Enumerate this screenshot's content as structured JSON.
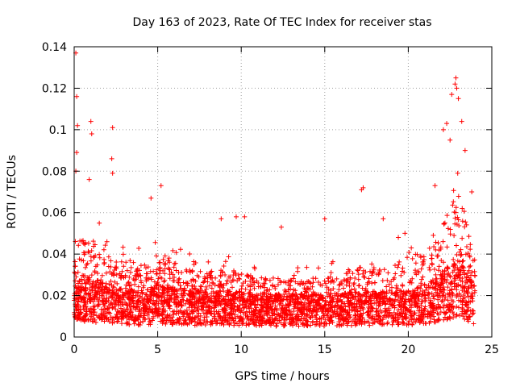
{
  "chart_data": {
    "type": "scatter",
    "title": "Day 163 of 2023, Rate Of TEC Index for receiver stas",
    "xlabel": "GPS time / hours",
    "ylabel": "ROTI / TECUs",
    "xlim": [
      0,
      25
    ],
    "ylim": [
      0,
      0.14
    ],
    "xticks": [
      0,
      5,
      10,
      15,
      20,
      25
    ],
    "xtick_labels": [
      "0",
      "5",
      "10",
      "15",
      "20",
      "25"
    ],
    "yticks": [
      0,
      0.02,
      0.04,
      0.06,
      0.08,
      0.1,
      0.12,
      0.14
    ],
    "ytick_labels": [
      "0",
      "0.02",
      "0.04",
      "0.06",
      "0.08",
      "0.1",
      "0.12",
      "0.14"
    ],
    "grid": true,
    "marker": "+",
    "color": "#ff0000",
    "series": [
      {
        "name": "ROTI",
        "profile": {
          "hours": [
            0,
            0.3,
            1,
            2,
            4,
            5,
            7,
            9,
            12,
            15,
            18,
            20,
            21.5,
            22.5,
            23,
            23.5,
            24
          ],
          "median": [
            0.014,
            0.018,
            0.018,
            0.016,
            0.014,
            0.016,
            0.014,
            0.014,
            0.013,
            0.013,
            0.014,
            0.014,
            0.017,
            0.022,
            0.024,
            0.02,
            0.015
          ],
          "upper": [
            0.05,
            0.06,
            0.06,
            0.05,
            0.045,
            0.05,
            0.04,
            0.04,
            0.035,
            0.035,
            0.045,
            0.05,
            0.055,
            0.08,
            0.09,
            0.07,
            0.04
          ]
        },
        "peaks": [
          {
            "x": 0.1,
            "y": 0.137
          },
          {
            "x": 0.15,
            "y": 0.116
          },
          {
            "x": 0.2,
            "y": 0.102
          },
          {
            "x": 0.15,
            "y": 0.089
          },
          {
            "x": 0.1,
            "y": 0.08
          },
          {
            "x": 1.0,
            "y": 0.104
          },
          {
            "x": 1.05,
            "y": 0.098
          },
          {
            "x": 0.9,
            "y": 0.076
          },
          {
            "x": 2.3,
            "y": 0.101
          },
          {
            "x": 2.25,
            "y": 0.086
          },
          {
            "x": 2.3,
            "y": 0.079
          },
          {
            "x": 5.2,
            "y": 0.073
          },
          {
            "x": 4.6,
            "y": 0.067
          },
          {
            "x": 8.8,
            "y": 0.057
          },
          {
            "x": 9.7,
            "y": 0.058
          },
          {
            "x": 10.2,
            "y": 0.058
          },
          {
            "x": 12.4,
            "y": 0.053
          },
          {
            "x": 15.0,
            "y": 0.057
          },
          {
            "x": 17.3,
            "y": 0.072
          },
          {
            "x": 17.2,
            "y": 0.071
          },
          {
            "x": 18.5,
            "y": 0.057
          },
          {
            "x": 19.8,
            "y": 0.05
          },
          {
            "x": 22.6,
            "y": 0.117
          },
          {
            "x": 22.8,
            "y": 0.122
          },
          {
            "x": 22.85,
            "y": 0.125
          },
          {
            "x": 22.9,
            "y": 0.12
          },
          {
            "x": 23.0,
            "y": 0.115
          },
          {
            "x": 23.2,
            "y": 0.104
          },
          {
            "x": 22.3,
            "y": 0.103
          },
          {
            "x": 22.1,
            "y": 0.1
          },
          {
            "x": 22.5,
            "y": 0.095
          },
          {
            "x": 23.4,
            "y": 0.09
          },
          {
            "x": 21.6,
            "y": 0.073
          },
          {
            "x": 23.8,
            "y": 0.07
          }
        ]
      }
    ]
  }
}
